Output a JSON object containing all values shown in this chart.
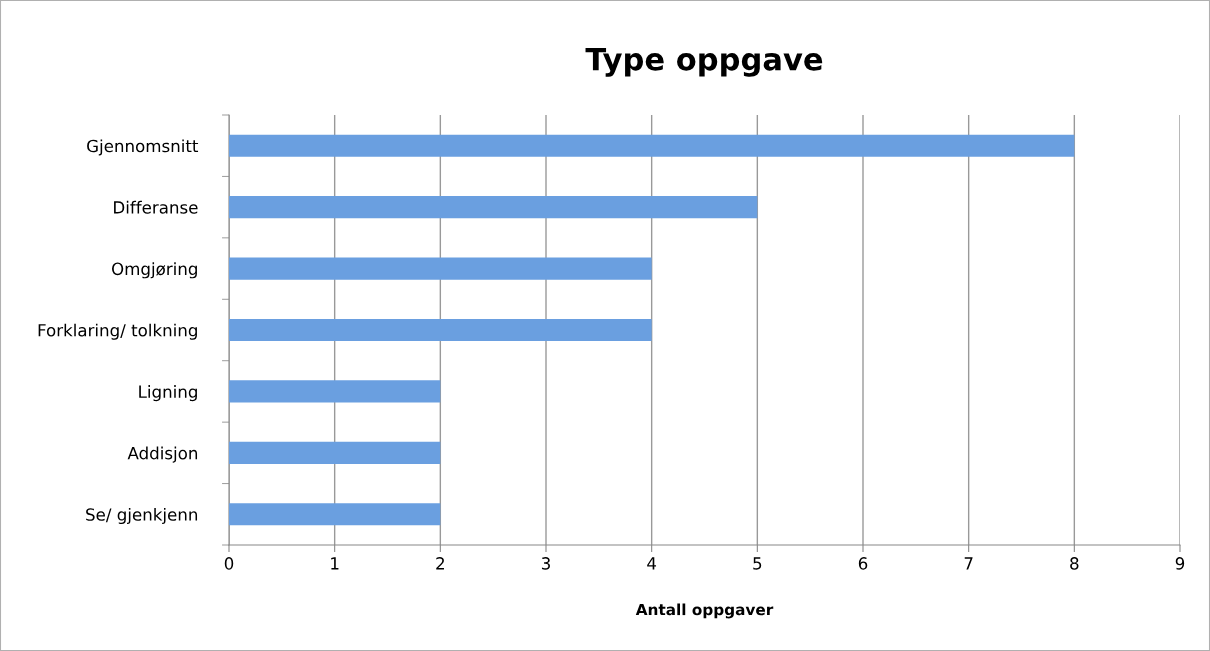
{
  "chart_data": {
    "type": "bar",
    "orientation": "horizontal",
    "title": "Type oppgave",
    "xlabel": "Antall oppgaver",
    "categories": [
      "Gjennomsnitt",
      "Differanse",
      "Omgjøring",
      "Forklaring/ tolkning",
      "Ligning",
      "Addisjon",
      "Se/ gjenkjenn"
    ],
    "values": [
      8,
      5,
      4,
      4,
      2,
      2,
      2
    ],
    "color": "#6a9fe0",
    "xlim": [
      0,
      9
    ],
    "xticks": [
      0,
      1,
      2,
      3,
      4,
      5,
      6,
      7,
      8,
      9
    ],
    "grid": "x",
    "legend": false
  }
}
